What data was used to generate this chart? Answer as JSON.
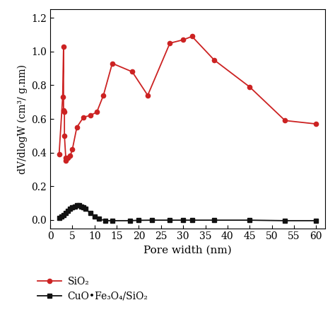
{
  "sio2_x": [
    2.0,
    2.8,
    3.0,
    3.0,
    3.2,
    3.2,
    3.5,
    3.5,
    4.0,
    4.5,
    5.0,
    6.0,
    7.5,
    9.0,
    10.5,
    12.0,
    14.0,
    18.5,
    22.0,
    27.0,
    30.0,
    32.0,
    37.0,
    45.0,
    53.0,
    60.0
  ],
  "sio2_y": [
    0.39,
    0.73,
    1.03,
    0.65,
    0.64,
    0.5,
    0.37,
    0.35,
    0.37,
    0.38,
    0.42,
    0.55,
    0.61,
    0.62,
    0.64,
    0.74,
    0.93,
    0.88,
    0.74,
    1.05,
    1.07,
    1.09,
    0.95,
    0.79,
    0.59,
    0.57
  ],
  "cuo_x": [
    2.0,
    2.5,
    3.0,
    3.5,
    4.0,
    4.5,
    5.0,
    5.5,
    6.0,
    6.5,
    7.0,
    7.5,
    8.0,
    9.0,
    10.0,
    11.0,
    12.5,
    14.0,
    18.0,
    20.0,
    23.0,
    27.0,
    30.0,
    32.0,
    37.0,
    45.0,
    53.0,
    60.0
  ],
  "cuo_y": [
    0.01,
    0.02,
    0.03,
    0.04,
    0.055,
    0.065,
    0.075,
    0.08,
    0.085,
    0.085,
    0.08,
    0.075,
    0.065,
    0.04,
    0.02,
    0.005,
    -0.005,
    -0.005,
    -0.005,
    -0.003,
    -0.002,
    -0.002,
    -0.002,
    -0.002,
    -0.002,
    -0.002,
    -0.005,
    -0.005
  ],
  "sio2_color": "#cc2222",
  "cuo_color": "#111111",
  "xlabel": "Pore width (nm)",
  "ylabel": "dV/dlogW (cm³/ g.nm)",
  "xlim": [
    0,
    62
  ],
  "ylim": [
    -0.05,
    1.25
  ],
  "yticks": [
    0.0,
    0.2,
    0.4,
    0.6,
    0.8,
    1.0,
    1.2
  ],
  "xticks": [
    0,
    5,
    10,
    15,
    20,
    25,
    30,
    35,
    40,
    45,
    50,
    55,
    60
  ],
  "legend_sio2": "SiO₂",
  "legend_cuo": "CuO•Fe₃O₄/SiO₂",
  "marker_size": 4.5
}
